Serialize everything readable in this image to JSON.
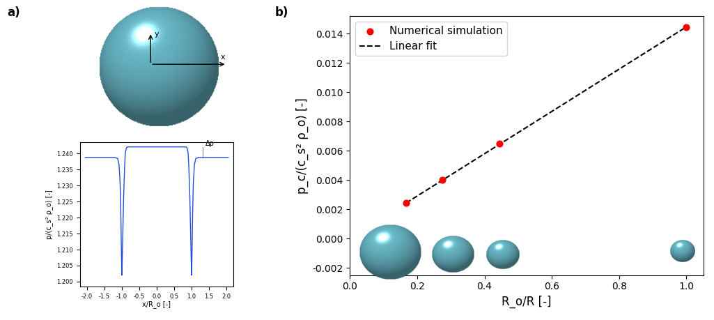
{
  "chart_data": [
    {
      "type": "line",
      "panel_label": "a)",
      "xlabel": "x/R_o [-]",
      "ylabel": "p/(c_s² ρ_o) [-]",
      "x": [
        -2.05,
        -1.5,
        -1.2,
        -1.12,
        -1.08,
        -1.05,
        -1.03,
        -1.01,
        -1.0,
        -0.99,
        -0.97,
        -0.95,
        -0.92,
        -0.9,
        -0.87,
        -0.84,
        -0.5,
        0.0,
        0.5,
        0.84,
        0.87,
        0.9,
        0.92,
        0.95,
        0.97,
        0.99,
        1.0,
        1.01,
        1.03,
        1.05,
        1.08,
        1.12,
        1.2,
        1.5,
        2.05
      ],
      "series": [
        {
          "color": "#1f4fd8",
          "values": [
            1.2388,
            1.2388,
            1.2388,
            1.2385,
            1.2365,
            1.231,
            1.222,
            1.208,
            1.202,
            1.206,
            1.216,
            1.226,
            1.236,
            1.2402,
            1.2418,
            1.2421,
            1.2421,
            1.2421,
            1.2421,
            1.2421,
            1.2418,
            1.2402,
            1.236,
            1.226,
            1.216,
            1.206,
            1.202,
            1.208,
            1.222,
            1.231,
            1.2365,
            1.2385,
            1.2388,
            1.2388,
            1.2388
          ]
        }
      ],
      "xlim": [
        -2.2,
        2.2
      ],
      "xticks": [
        -2.0,
        -1.5,
        -1.0,
        -0.5,
        0.0,
        0.5,
        1.0,
        1.5,
        2.0
      ],
      "ylim": [
        1.1985,
        1.2435
      ],
      "yticks": [
        {
          "value": 1.2,
          "label": "1.200"
        },
        {
          "value": 1.205,
          "label": "1.205"
        },
        {
          "value": 1.21,
          "label": "1.210"
        },
        {
          "value": 1.215,
          "label": "1.215"
        },
        {
          "value": 1.22,
          "label": "1.220"
        },
        {
          "value": 1.225,
          "label": "1.225"
        },
        {
          "value": 1.23,
          "label": "1.230"
        },
        {
          "value": 1.235,
          "label": "1.235"
        },
        {
          "value": 1.24,
          "label": "1.240"
        }
      ],
      "annotations": [
        {
          "text": "Δp",
          "x": 1.32
        }
      ],
      "grid": false
    },
    {
      "type": "scatter",
      "panel_label": "b)",
      "xlabel": "R_o/R [-]",
      "ylabel": "p_c/(c_s² ρ_o) [-]",
      "series": [
        {
          "name": "Numerical simulation",
          "type": "scatter",
          "color": "#ff0000",
          "marker": "circle",
          "x": [
            0.167,
            0.275,
            0.444,
            1.0
          ],
          "values": [
            0.00245,
            0.004,
            0.0065,
            0.01445
          ]
        },
        {
          "name": "Linear fit",
          "type": "line",
          "color": "#000000",
          "line_style": "dashed",
          "x": [
            0.167,
            1.0
          ],
          "values": [
            0.00243,
            0.01446
          ]
        }
      ],
      "xlim": [
        0.0,
        1.05
      ],
      "xticks": [
        0.0,
        0.2,
        0.4,
        0.6,
        0.8,
        1.0
      ],
      "ylim": [
        -0.0025,
        0.0152
      ],
      "yticks": [
        {
          "value": -0.002,
          "label": "-0.002"
        },
        {
          "value": 0.0,
          "label": "0.000"
        },
        {
          "value": 0.002,
          "label": "0.002"
        },
        {
          "value": 0.004,
          "label": "0.004"
        },
        {
          "value": 0.006,
          "label": "0.006"
        },
        {
          "value": 0.008,
          "label": "0.008"
        },
        {
          "value": 0.01,
          "label": "0.010"
        },
        {
          "value": 0.012,
          "label": "0.012"
        },
        {
          "value": 0.014,
          "label": "0.014"
        }
      ],
      "legend": "upper left",
      "grid": false
    }
  ],
  "diagram": {
    "axis_labels": [
      "x",
      "y"
    ]
  }
}
